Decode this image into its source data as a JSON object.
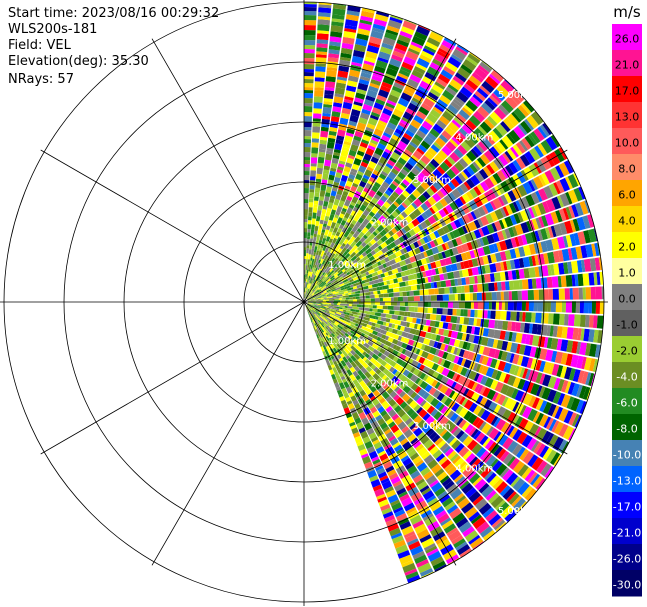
{
  "header": {
    "start_time": "Start time: 2023/08/16 00:29:32",
    "instrument": "WLS200s-181",
    "field": "Field: VEL",
    "elevation": "Elevation(deg): 35.30",
    "nrays": "NRays: 57"
  },
  "chart_data": {
    "type": "heatmap",
    "subtype": "polar-ppi",
    "field": "VEL",
    "units": "m/s",
    "n_rays": 57,
    "azimuth_start_deg": 0,
    "azimuth_end_deg": 160,
    "range_ring_labels": [
      "1.00km",
      "2.00km",
      "3.00km",
      "4.00km",
      "5.00km"
    ],
    "colorbar": {
      "unit": "m/s",
      "ticks": [
        "26.0",
        "21.0",
        "17.0",
        "13.0",
        "10.0",
        "8.0",
        "6.0",
        "4.0",
        "2.0",
        "1.0",
        "0.0",
        "-1.0",
        "-2.0",
        "-4.0",
        "-6.0",
        "-8.0",
        "-10.0",
        "-13.0",
        "-17.0",
        "-21.0",
        "-26.0",
        "-30.0"
      ],
      "colors": [
        "#ff00ff",
        "#ff1493",
        "#ff0000",
        "#ff3333",
        "#ff5a5a",
        "#ff8c69",
        "#ffa500",
        "#ffd700",
        "#ffff00",
        "#ffffa0",
        "#808080",
        "#606060",
        "#9acd32",
        "#6b8e23",
        "#228b22",
        "#006400",
        "#4682b4",
        "#0064ff",
        "#0000ff",
        "#0000cd",
        "#00008b",
        "#000066"
      ]
    },
    "near_field_colors": [
      "#9acd32",
      "#808080",
      "#6b8e23",
      "#ffff00",
      "#228b22"
    ],
    "far_field_colors": [
      "#ff00ff",
      "#ff1493",
      "#ff0000",
      "#ffa500",
      "#ffff00",
      "#0000ff",
      "#00008b",
      "#228b22",
      "#9acd32",
      "#808080",
      "#4682b4",
      "#0064ff",
      "#ffd700",
      "#6b8e23",
      "#006400",
      "#ff5a5a"
    ],
    "grid": true
  }
}
